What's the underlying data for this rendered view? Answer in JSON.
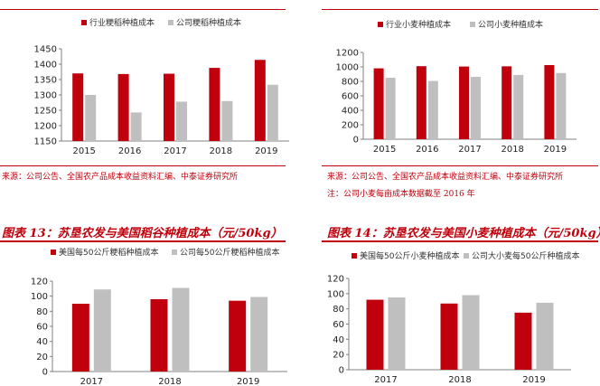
{
  "charts": {
    "c1": {
      "legend": [
        "行业粳稻种植成本",
        "公司粳稻种植成本"
      ],
      "source": "来源：公司公告、全国农产品成本收益资料汇编、中泰证券研究所"
    },
    "c2": {
      "legend": [
        "行业小麦种植成本",
        "公司小麦种植成本"
      ],
      "source": "来源：公司公告、全国农产品成本收益资料汇编、中泰证券研究所",
      "note": "注：公司小麦每亩成本数据截至 2016 年"
    },
    "c3": {
      "title": "图表 13：苏垦农发与美国稻谷种植成本（元/50kg）",
      "legend": [
        "美国每50公斤粳稻种植成本",
        "公司每50公斤粳稻种植成本"
      ]
    },
    "c4": {
      "title": "图表 14：苏垦农发与美国小麦种植成本（元/50kg）",
      "legend": [
        "美国每50公斤小麦种植成本",
        "公司大小麦每50公斤种植成本"
      ]
    }
  },
  "colors": {
    "series1": "#c0000c",
    "series2": "#bfbfbf",
    "accent": "#c0000c"
  },
  "chart_data": [
    {
      "type": "bar",
      "categories": [
        "2015",
        "2016",
        "2017",
        "2018",
        "2019"
      ],
      "series": [
        {
          "name": "行业粳稻种植成本",
          "values": [
            1370,
            1368,
            1369,
            1388,
            1414
          ]
        },
        {
          "name": "公司粳稻种植成本",
          "values": [
            1300,
            1243,
            1278,
            1280,
            1333
          ]
        }
      ],
      "ylim": [
        1150,
        1450
      ],
      "yticks": [
        1150,
        1200,
        1250,
        1300,
        1350,
        1400,
        1450
      ],
      "legend": "top"
    },
    {
      "type": "bar",
      "categories": [
        "2015",
        "2016",
        "2017",
        "2018",
        "2019"
      ],
      "series": [
        {
          "name": "行业小麦种植成本",
          "values": [
            980,
            1010,
            1005,
            1008,
            1025
          ]
        },
        {
          "name": "公司小麦种植成本",
          "values": [
            850,
            805,
            862,
            888,
            915
          ]
        }
      ],
      "ylim": [
        0,
        1200
      ],
      "yticks": [
        0,
        200,
        400,
        600,
        800,
        1000,
        1200
      ],
      "legend": "top"
    },
    {
      "type": "bar",
      "categories": [
        "2017",
        "2018",
        "2019"
      ],
      "series": [
        {
          "name": "美国每50公斤粳稻种植成本",
          "values": [
            90,
            96,
            94
          ]
        },
        {
          "name": "公司每50公斤粳稻种植成本",
          "values": [
            109,
            111,
            99
          ]
        }
      ],
      "ylim": [
        0,
        120
      ],
      "yticks": [
        0,
        20,
        40,
        60,
        80,
        100,
        120
      ],
      "legend": "top"
    },
    {
      "type": "bar",
      "categories": [
        "2017",
        "2018",
        "2019"
      ],
      "series": [
        {
          "name": "美国每50公斤小麦种植成本",
          "values": [
            92,
            87,
            75
          ]
        },
        {
          "name": "公司大小麦每50公斤种植成本",
          "values": [
            95,
            98,
            88
          ]
        }
      ],
      "ylim": [
        0,
        120
      ],
      "yticks": [
        0,
        20,
        40,
        60,
        80,
        100,
        120
      ],
      "legend": "top"
    }
  ]
}
